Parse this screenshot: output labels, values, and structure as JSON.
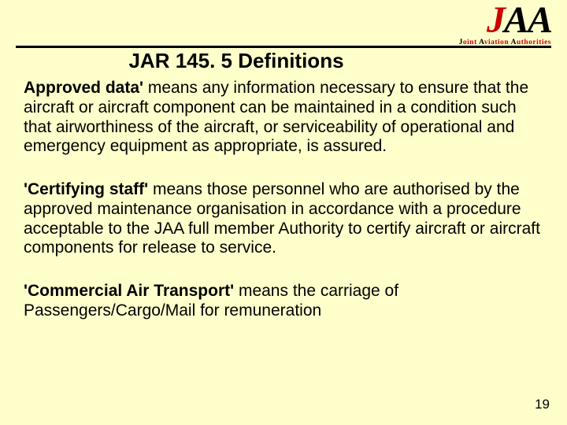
{
  "logo": {
    "letters": "JAA",
    "subtitle_parts": [
      "J",
      "oint ",
      "A",
      "viation ",
      "A",
      "uthorities"
    ]
  },
  "title": "JAR 145. 5 Definitions",
  "definitions": [
    {
      "term": "Approved data'",
      "body": " means any information necessary to ensure that the aircraft or aircraft component can be maintained in a condition such that airworthiness of the aircraft, or serviceability of operational and emergency equipment as appropriate, is assured."
    },
    {
      "term": "'Certifying staff'",
      "body": " means those personnel who are authorised by the approved maintenance organisation in accordance with a procedure acceptable to the JAA full member Authority to certify aircraft or aircraft components for release to service."
    },
    {
      "term": "'Commercial Air Transport'",
      "body": " means the carriage of Passengers/Cargo/Mail for remuneration"
    }
  ],
  "page_number": "19",
  "colors": {
    "background": "#ffffcc",
    "accent": "#cc0000",
    "text": "#000000"
  }
}
